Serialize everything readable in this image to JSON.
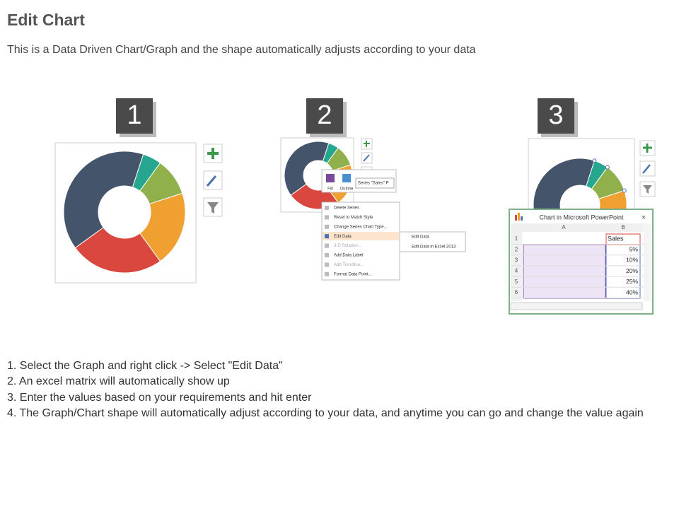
{
  "header": {
    "title": "Edit Chart",
    "subtitle": "This is a Data Driven Chart/Graph and the shape automatically adjusts according to your data"
  },
  "steps": [
    "1",
    "2",
    "3"
  ],
  "context_menu": {
    "toolbar": [
      "Fill",
      "Outline",
      "Series \"Sales\" P"
    ],
    "items": [
      "Delete Series",
      "Reset to Match Style",
      "Change Series Chart Type...",
      "Edit Data",
      "3-D Rotation...",
      "Add Data Label",
      "Add Trendline...",
      "Format Data Point..."
    ],
    "submenu": [
      "Edit Data",
      "Edit Data in Excel 2013"
    ]
  },
  "excel": {
    "title": "Chart in Microsoft PowerPoint",
    "columns": [
      "A",
      "B"
    ],
    "rows": [
      [
        "1",
        "Sales"
      ],
      [
        "2",
        "5%"
      ],
      [
        "3",
        "10%"
      ],
      [
        "4",
        "20%"
      ],
      [
        "5",
        "25%"
      ],
      [
        "6",
        "40%"
      ]
    ]
  },
  "instructions": [
    "1. Select the Graph and right click -> Select \"Edit Data\"",
    "2. An excel matrix will automatically show up",
    "3. Enter the values based on your requirements and hit enter",
    "4. The Graph/Chart shape will automatically adjust according to your data, and anytime you can go and change the value again"
  ]
}
